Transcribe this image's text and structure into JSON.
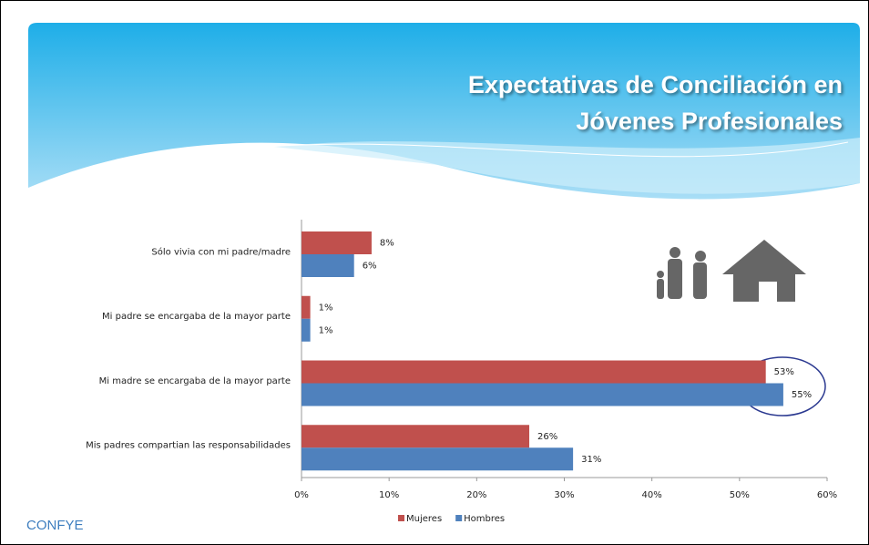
{
  "chart_data": {
    "type": "barh",
    "title": "Expectativas de Conciliación en Jóvenes Profesionales",
    "categories": [
      "Sólo vivia con mi padre/madre",
      "Mi padre se encargaba de la mayor parte",
      "Mi madre se encargaba de la mayor parte",
      "Mis padres compartian las responsabilidades"
    ],
    "series": [
      {
        "name": "Mujeres",
        "color": "#c0504d",
        "values": [
          8,
          1,
          53,
          26
        ],
        "value_labels": [
          "8%",
          "1%",
          "53%",
          "26%"
        ]
      },
      {
        "name": "Hombres",
        "color": "#4f81bd",
        "values": [
          6,
          1,
          55,
          31
        ],
        "value_labels": [
          "6%",
          "1%",
          "55%",
          "31%"
        ]
      }
    ],
    "xlim": [
      0,
      60
    ],
    "xticks": [
      {
        "value": 0,
        "label": "0%"
      },
      {
        "value": 10,
        "label": "10%"
      },
      {
        "value": 20,
        "label": "20%"
      },
      {
        "value": 30,
        "label": "30%"
      },
      {
        "value": 40,
        "label": "40%"
      },
      {
        "value": 50,
        "label": "50%"
      },
      {
        "value": 60,
        "label": "60%"
      }
    ],
    "grid": false,
    "legend": "bottom"
  },
  "footer": "CONFYE"
}
